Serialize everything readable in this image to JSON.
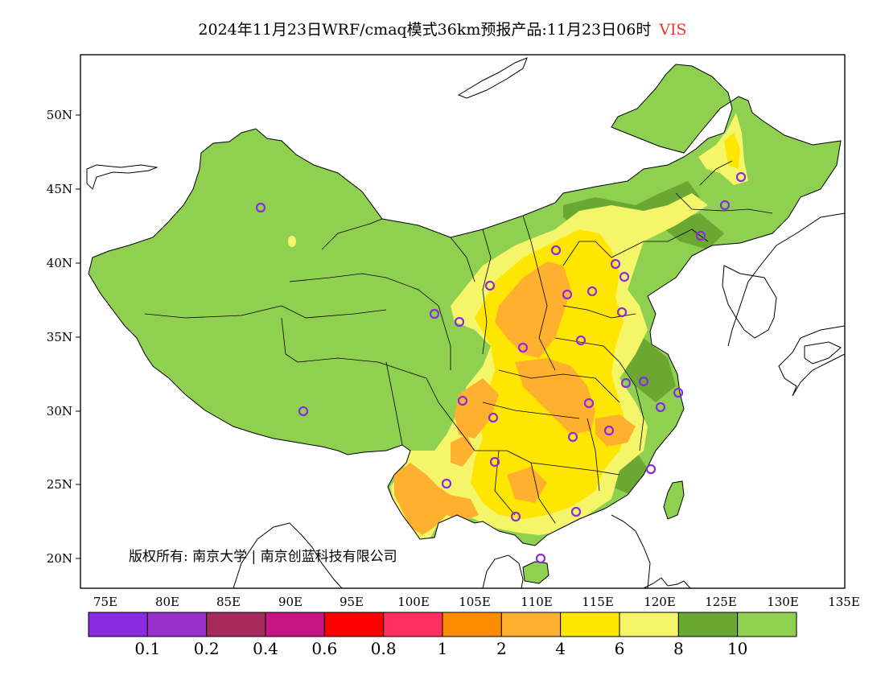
{
  "title": {
    "text": "2024年11月23日WRF/cmaq模式36km预报产品:11月23日06时",
    "variable": "VIS"
  },
  "axes": {
    "y_ticks": [
      "50N",
      "45N",
      "40N",
      "35N",
      "30N",
      "25N",
      "20N"
    ],
    "x_ticks": [
      "75E",
      "80E",
      "85E",
      "90E",
      "95E",
      "100E",
      "105E",
      "110E",
      "115E",
      "120E",
      "125E",
      "130E",
      "135E"
    ]
  },
  "copyright": "版权所有: 南京大学 | 南京创蓝科技有限公司",
  "colorbar": {
    "colors": [
      "#8a2be2",
      "#9932cc",
      "#a52a5a",
      "#c71585",
      "#ff0000",
      "#ff2f5e",
      "#ff8c00",
      "#ffb02e",
      "#ffe600",
      "#f5f56a",
      "#6aa832",
      "#8fd050"
    ],
    "labels": [
      "0.1",
      "0.2",
      "0.4",
      "0.6",
      "0.8",
      "1",
      "2",
      "4",
      "6",
      "8",
      "10"
    ]
  },
  "legend_colors": {
    "land_high_vis": "#8fd050",
    "mid_vis": "#6aa832",
    "light_yellow": "#f5f56a",
    "yellow": "#ffe600",
    "orange": "#ffb02e",
    "dark_orange": "#ff8c00",
    "station_marker": "#8a2be2"
  }
}
